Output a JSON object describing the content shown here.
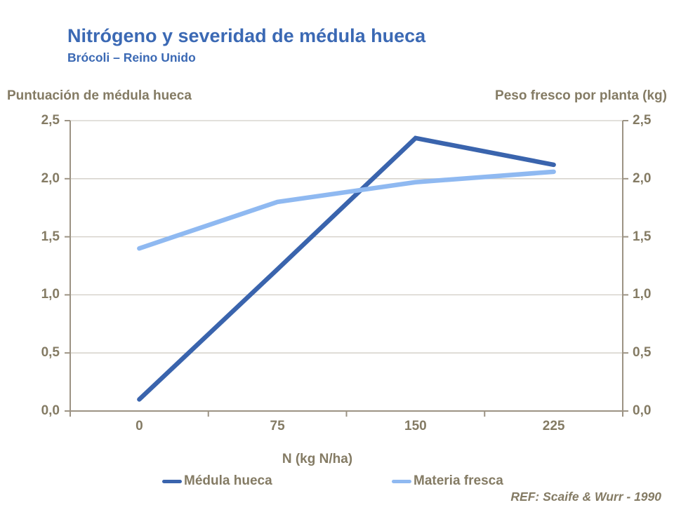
{
  "title": "Nitrógeno y severidad de médula hueca",
  "subtitle": "Brócoli – Reino Unido",
  "left_axis_header": "Puntuación de médula hueca",
  "right_axis_header": "Peso fresco por planta (kg)",
  "ref_note": "REF: Scaife & Wurr - 1990",
  "colors": {
    "title_blue": "#3B69B4",
    "text_taupe": "#847B64",
    "axis_line": "#9C9384",
    "gridline": "#D1CDC5",
    "medula_line": "#3A64AD",
    "materia_line": "#8FB9F1",
    "background": "#FFFFFF"
  },
  "chart_data": {
    "type": "line",
    "title": "Nitrógeno y severidad de médula hueca",
    "subtitle": "Brócoli – Reino Unido",
    "categories": [
      0,
      75,
      150,
      225
    ],
    "x_tick_labels": [
      "0",
      "75",
      "150",
      "225"
    ],
    "xlabel": "N (kg N/ha)",
    "ylabel_left": "Puntuación de médula hueca",
    "ylabel_right": "Peso fresco por planta (kg)",
    "ylim": [
      0,
      2.5
    ],
    "y_tick_values": [
      0,
      0.5,
      1,
      1.5,
      2,
      2.5
    ],
    "y_tick_labels": [
      "0,0",
      "0,5",
      "1,0",
      "1,5",
      "2,0",
      "2,5"
    ],
    "grid": "horizontal",
    "legend_position": "bottom",
    "series": [
      {
        "name": "Médula hueca",
        "axis": "left",
        "color": "#3A64AD",
        "values": [
          0.1,
          1.22,
          2.35,
          2.12
        ]
      },
      {
        "name": "Materia fresca",
        "axis": "right",
        "color": "#8FB9F1",
        "values": [
          1.4,
          1.8,
          1.97,
          2.06
        ]
      }
    ]
  }
}
